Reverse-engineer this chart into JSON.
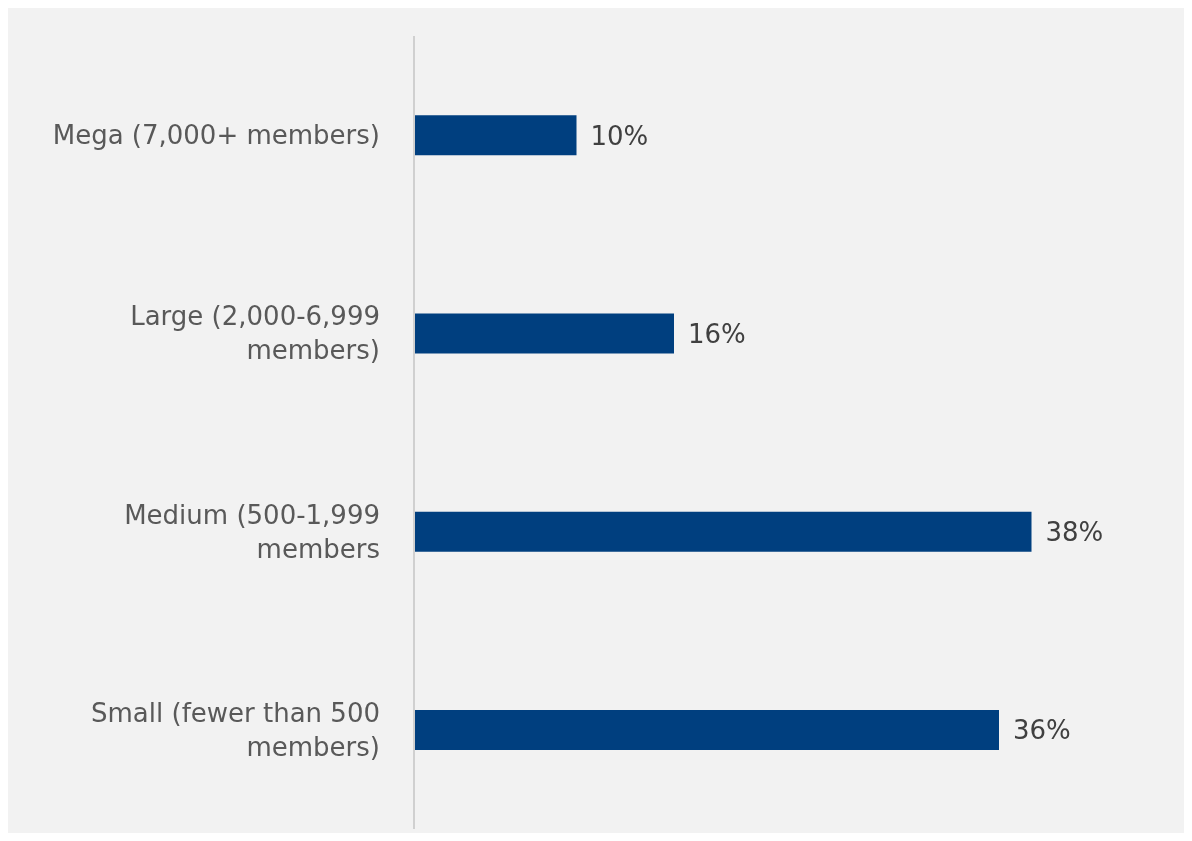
{
  "chart_data": {
    "type": "bar",
    "orientation": "horizontal",
    "categories": [
      "Mega (7,000+ members)",
      "Large (2,000-6,999 members)",
      "Medium (500-1,999 members",
      "Small (fewer than 500 members)"
    ],
    "values": [
      10,
      16,
      38,
      36
    ],
    "value_labels": [
      "10%",
      "16%",
      "38%",
      "36%"
    ],
    "color": "#003f7f"
  }
}
